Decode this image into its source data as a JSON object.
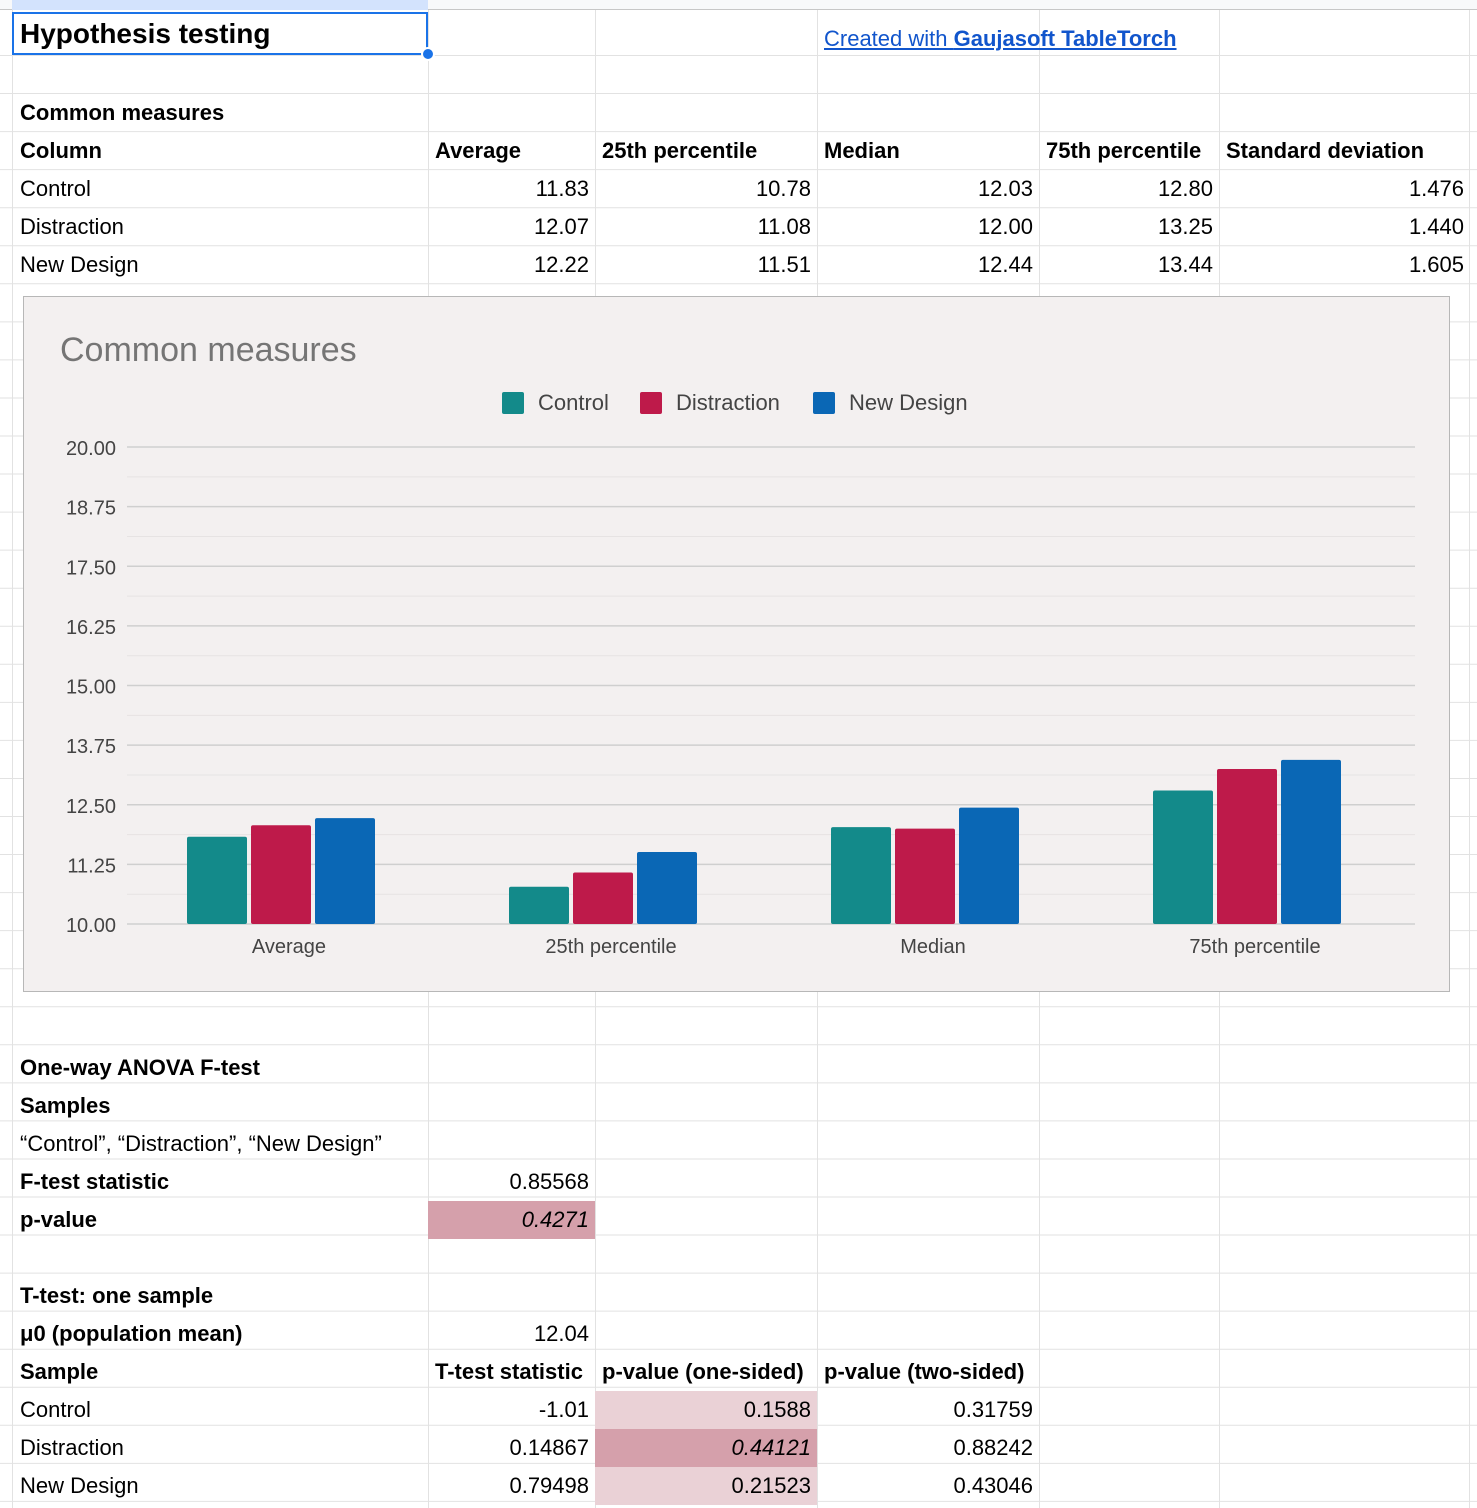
{
  "sheet": {
    "title": "Hypothesis testing",
    "credit": {
      "prefix": "Created with ",
      "brand": "Gaujasoft TableTorch"
    }
  },
  "common": {
    "heading": "Common measures",
    "headers": [
      "Column",
      "Average",
      "25th percentile",
      "Median",
      "75th percentile",
      "Standard deviation"
    ],
    "rows": [
      [
        "Control",
        "11.83",
        "10.78",
        "12.03",
        "12.80",
        "1.476"
      ],
      [
        "Distraction",
        "12.07",
        "11.08",
        "12.00",
        "13.25",
        "1.440"
      ],
      [
        "New Design",
        "12.22",
        "11.51",
        "12.44",
        "13.44",
        "1.605"
      ]
    ]
  },
  "chart_data": {
    "type": "bar",
    "title": "Common measures",
    "categories": [
      "Average",
      "25th percentile",
      "Median",
      "75th percentile"
    ],
    "series": [
      {
        "name": "Control",
        "values": [
          11.83,
          10.78,
          12.03,
          12.8
        ],
        "color": "#138a8a"
      },
      {
        "name": "Distraction",
        "values": [
          12.07,
          11.08,
          12.0,
          13.25
        ],
        "color": "#be1a4a"
      },
      {
        "name": "New Design",
        "values": [
          12.22,
          11.51,
          12.44,
          13.44
        ],
        "color": "#0a67b5"
      }
    ],
    "ylim": [
      10,
      20
    ],
    "yticks": [
      "20.00",
      "18.75",
      "17.50",
      "16.25",
      "15.00",
      "13.75",
      "12.50",
      "11.25",
      "10.00"
    ],
    "grid": true,
    "legend": "top-center",
    "background": "#f3f0f0"
  },
  "anova": {
    "heading": "One-way ANOVA F-test",
    "samples_label": "Samples",
    "samples_value": "“Control”, “Distraction”, “New Design”",
    "f_label": "F-test statistic",
    "f_value": "0.85568",
    "p_label": "p-value",
    "p_value": "0.4271"
  },
  "ttest": {
    "heading": "T-test: one sample",
    "mu_label": "μ0 (population mean)",
    "mu_value": "12.04",
    "headers": [
      "Sample",
      "T-test statistic",
      "p-value (one-sided)",
      "p-value (two-sided)"
    ],
    "rows": [
      [
        "Control",
        "-1.01",
        "0.1588",
        "0.31759"
      ],
      [
        "Distraction",
        "0.14867",
        "0.44121",
        "0.88242"
      ],
      [
        "New Design",
        "0.79498",
        "0.21523",
        "0.43046"
      ]
    ]
  },
  "colors": {
    "gridline": "#e2e2e2",
    "selection": "#1a73e8",
    "link": "#1155cc",
    "highlight_strong": "#d5a0ab",
    "highlight_light": "#ead1d6"
  }
}
